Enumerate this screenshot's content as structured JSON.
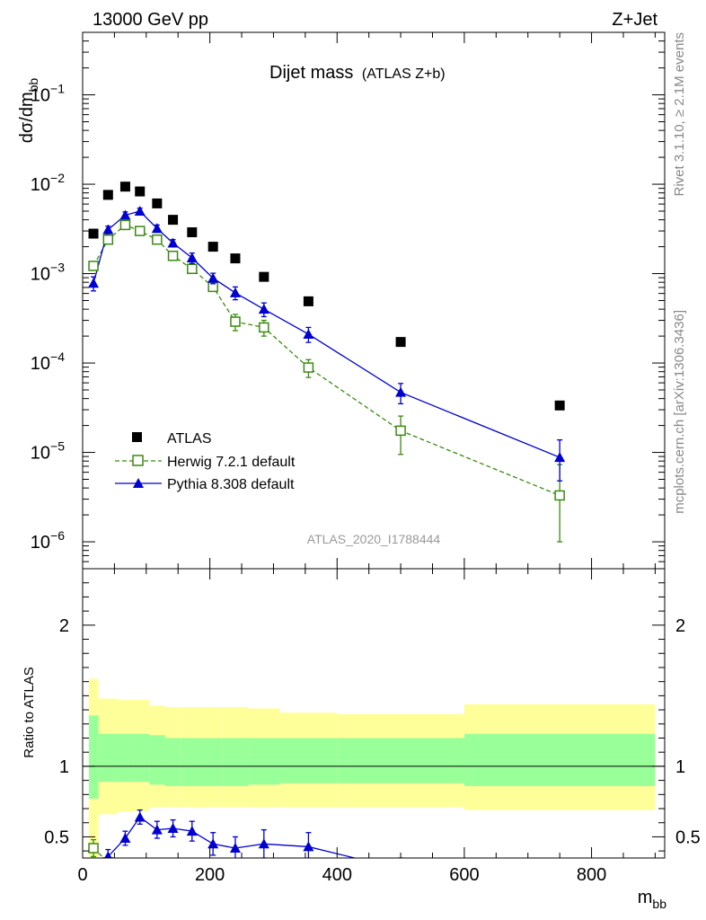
{
  "header": {
    "energy_label": "13000 GeV pp",
    "process_label": "Z+Jet"
  },
  "side_text": {
    "rivet": "Rivet 3.1.10, ≥ 2.1M events",
    "mcplots": "mcplots.cern.ch [arXiv:1306.3436]"
  },
  "chart_data": [
    {
      "type": "scatter",
      "title_main": "Dijet mass",
      "title_sub": "(ATLAS Z+b)",
      "ylabel": "dσ/dm",
      "ylabel_sub": "bb",
      "yscale": "log",
      "ylim": [
        5e-07,
        0.5
      ],
      "xlim": [
        0,
        915
      ],
      "analysis_tag": "ATLAS_2020_I1788444",
      "y_tick_labels": [
        {
          "mant": "10",
          "exp": "−1"
        },
        {
          "mant": "10",
          "exp": "−2"
        },
        {
          "mant": "10",
          "exp": "−3"
        },
        {
          "mant": "10",
          "exp": "−4"
        },
        {
          "mant": "10",
          "exp": "−5"
        },
        {
          "mant": "10",
          "exp": "−6"
        }
      ],
      "legend_position": "bottom-left",
      "series": [
        {
          "name": "ATLAS",
          "color": "#000000",
          "marker": "filled-square",
          "x": [
            17,
            40,
            67,
            90,
            117,
            142,
            172,
            205,
            240,
            285,
            355,
            500,
            750
          ],
          "y": [
            0.0028,
            0.0076,
            0.0094,
            0.0083,
            0.0061,
            0.004,
            0.0029,
            0.002,
            0.00148,
            0.00092,
            0.00049,
            0.000172,
            3.35e-05
          ]
        },
        {
          "name": "Herwig 7.2.1 default",
          "color": "#3a8a0f",
          "marker": "open-square",
          "line": "dashed",
          "x": [
            17,
            40,
            67,
            90,
            117,
            142,
            172,
            205,
            240,
            285,
            355,
            500,
            750
          ],
          "y": [
            0.00122,
            0.0024,
            0.0035,
            0.003,
            0.0024,
            0.00158,
            0.00113,
            0.00071,
            0.00029,
            0.00025,
            8.9e-05,
            1.75e-05,
            3.3e-06
          ],
          "err_lo": [
            0.00012,
            0.0002,
            0.0002,
            0.0002,
            0.0002,
            0.00012,
            9e-05,
            7e-05,
            6e-05,
            5e-05,
            2e-05,
            8e-06,
            2.3e-06
          ],
          "err_hi": [
            0.00012,
            0.0002,
            0.0002,
            0.0002,
            0.0002,
            0.00012,
            9e-05,
            7e-05,
            6e-05,
            5e-05,
            2e-05,
            8e-06,
            4e-06
          ]
        },
        {
          "name": "Pythia 8.308 default",
          "color": "#0000d0",
          "marker": "filled-triangle",
          "line": "solid",
          "x": [
            17,
            40,
            67,
            90,
            117,
            142,
            172,
            205,
            240,
            285,
            355,
            500,
            750
          ],
          "y": [
            0.00078,
            0.0031,
            0.0045,
            0.005,
            0.0032,
            0.0022,
            0.0015,
            0.00089,
            0.00061,
            0.0004,
            0.00021,
            4.7e-05,
            8.8e-06
          ],
          "err_lo": [
            0.00014,
            0.0003,
            0.0004,
            0.0004,
            0.0003,
            0.0002,
            0.0002,
            0.00012,
            0.0001,
            7e-05,
            4e-05,
            1.2e-05,
            4e-06
          ],
          "err_hi": [
            0.00014,
            0.0003,
            0.0004,
            0.0004,
            0.0003,
            0.0002,
            0.0002,
            0.00012,
            0.0001,
            7e-05,
            4e-05,
            1.2e-05,
            5e-06
          ]
        }
      ]
    },
    {
      "type": "scatter",
      "ylabel": "Ratio to ATLAS",
      "xlabel": "m",
      "xlabel_sub": "bb",
      "ylim": [
        0.35,
        2.4
      ],
      "xlim": [
        0,
        915
      ],
      "x_ticks": [
        0,
        200,
        400,
        600,
        800
      ],
      "x_tick_labels": [
        "0",
        "200",
        "400",
        "600",
        "800"
      ],
      "y_ticks": [
        0.5,
        1,
        2
      ],
      "y_tick_labels": [
        "0.5",
        "1",
        "2"
      ],
      "bands": {
        "edges": [
          10,
          25,
          55,
          80,
          105,
          130,
          155,
          190,
          220,
          260,
          310,
          400,
          600,
          900
        ],
        "inner_lo": [
          0.77,
          0.89,
          0.89,
          0.89,
          0.87,
          0.86,
          0.86,
          0.86,
          0.86,
          0.87,
          0.88,
          0.88,
          0.86
        ],
        "inner_hi": [
          1.36,
          1.23,
          1.23,
          1.23,
          1.22,
          1.2,
          1.2,
          1.2,
          1.2,
          1.2,
          1.2,
          1.2,
          1.23
        ],
        "outer_lo": [
          0.35,
          0.66,
          0.68,
          0.68,
          0.71,
          0.71,
          0.71,
          0.71,
          0.71,
          0.71,
          0.71,
          0.71,
          0.69
        ],
        "outer_hi": [
          1.62,
          1.48,
          1.47,
          1.47,
          1.43,
          1.42,
          1.42,
          1.42,
          1.42,
          1.41,
          1.38,
          1.37,
          1.44
        ],
        "inner_color": "#99ff99",
        "outer_color": "#ffff99"
      },
      "series": [
        {
          "name": "Herwig 7.2.1 default",
          "color": "#3a8a0f",
          "marker": "open-square",
          "x": [
            17,
            40
          ],
          "y": [
            0.42,
            0.32
          ],
          "err_lo": [
            0.06,
            0.04
          ],
          "err_hi": [
            0.06,
            0.04
          ]
        },
        {
          "name": "Pythia 8.308 default",
          "color": "#0000d0",
          "marker": "filled-triangle",
          "x": [
            17,
            40,
            67,
            90,
            117,
            142,
            172,
            205,
            240,
            285,
            355,
            500
          ],
          "y": [
            0.28,
            0.36,
            0.49,
            0.64,
            0.55,
            0.56,
            0.54,
            0.45,
            0.42,
            0.45,
            0.43,
            0.27
          ],
          "err_lo": [
            0.06,
            0.05,
            0.05,
            0.05,
            0.06,
            0.06,
            0.07,
            0.08,
            0.08,
            0.1,
            0.1,
            0.08
          ],
          "err_hi": [
            0.06,
            0.05,
            0.05,
            0.05,
            0.06,
            0.06,
            0.07,
            0.08,
            0.08,
            0.1,
            0.1,
            0.08
          ]
        }
      ]
    }
  ]
}
